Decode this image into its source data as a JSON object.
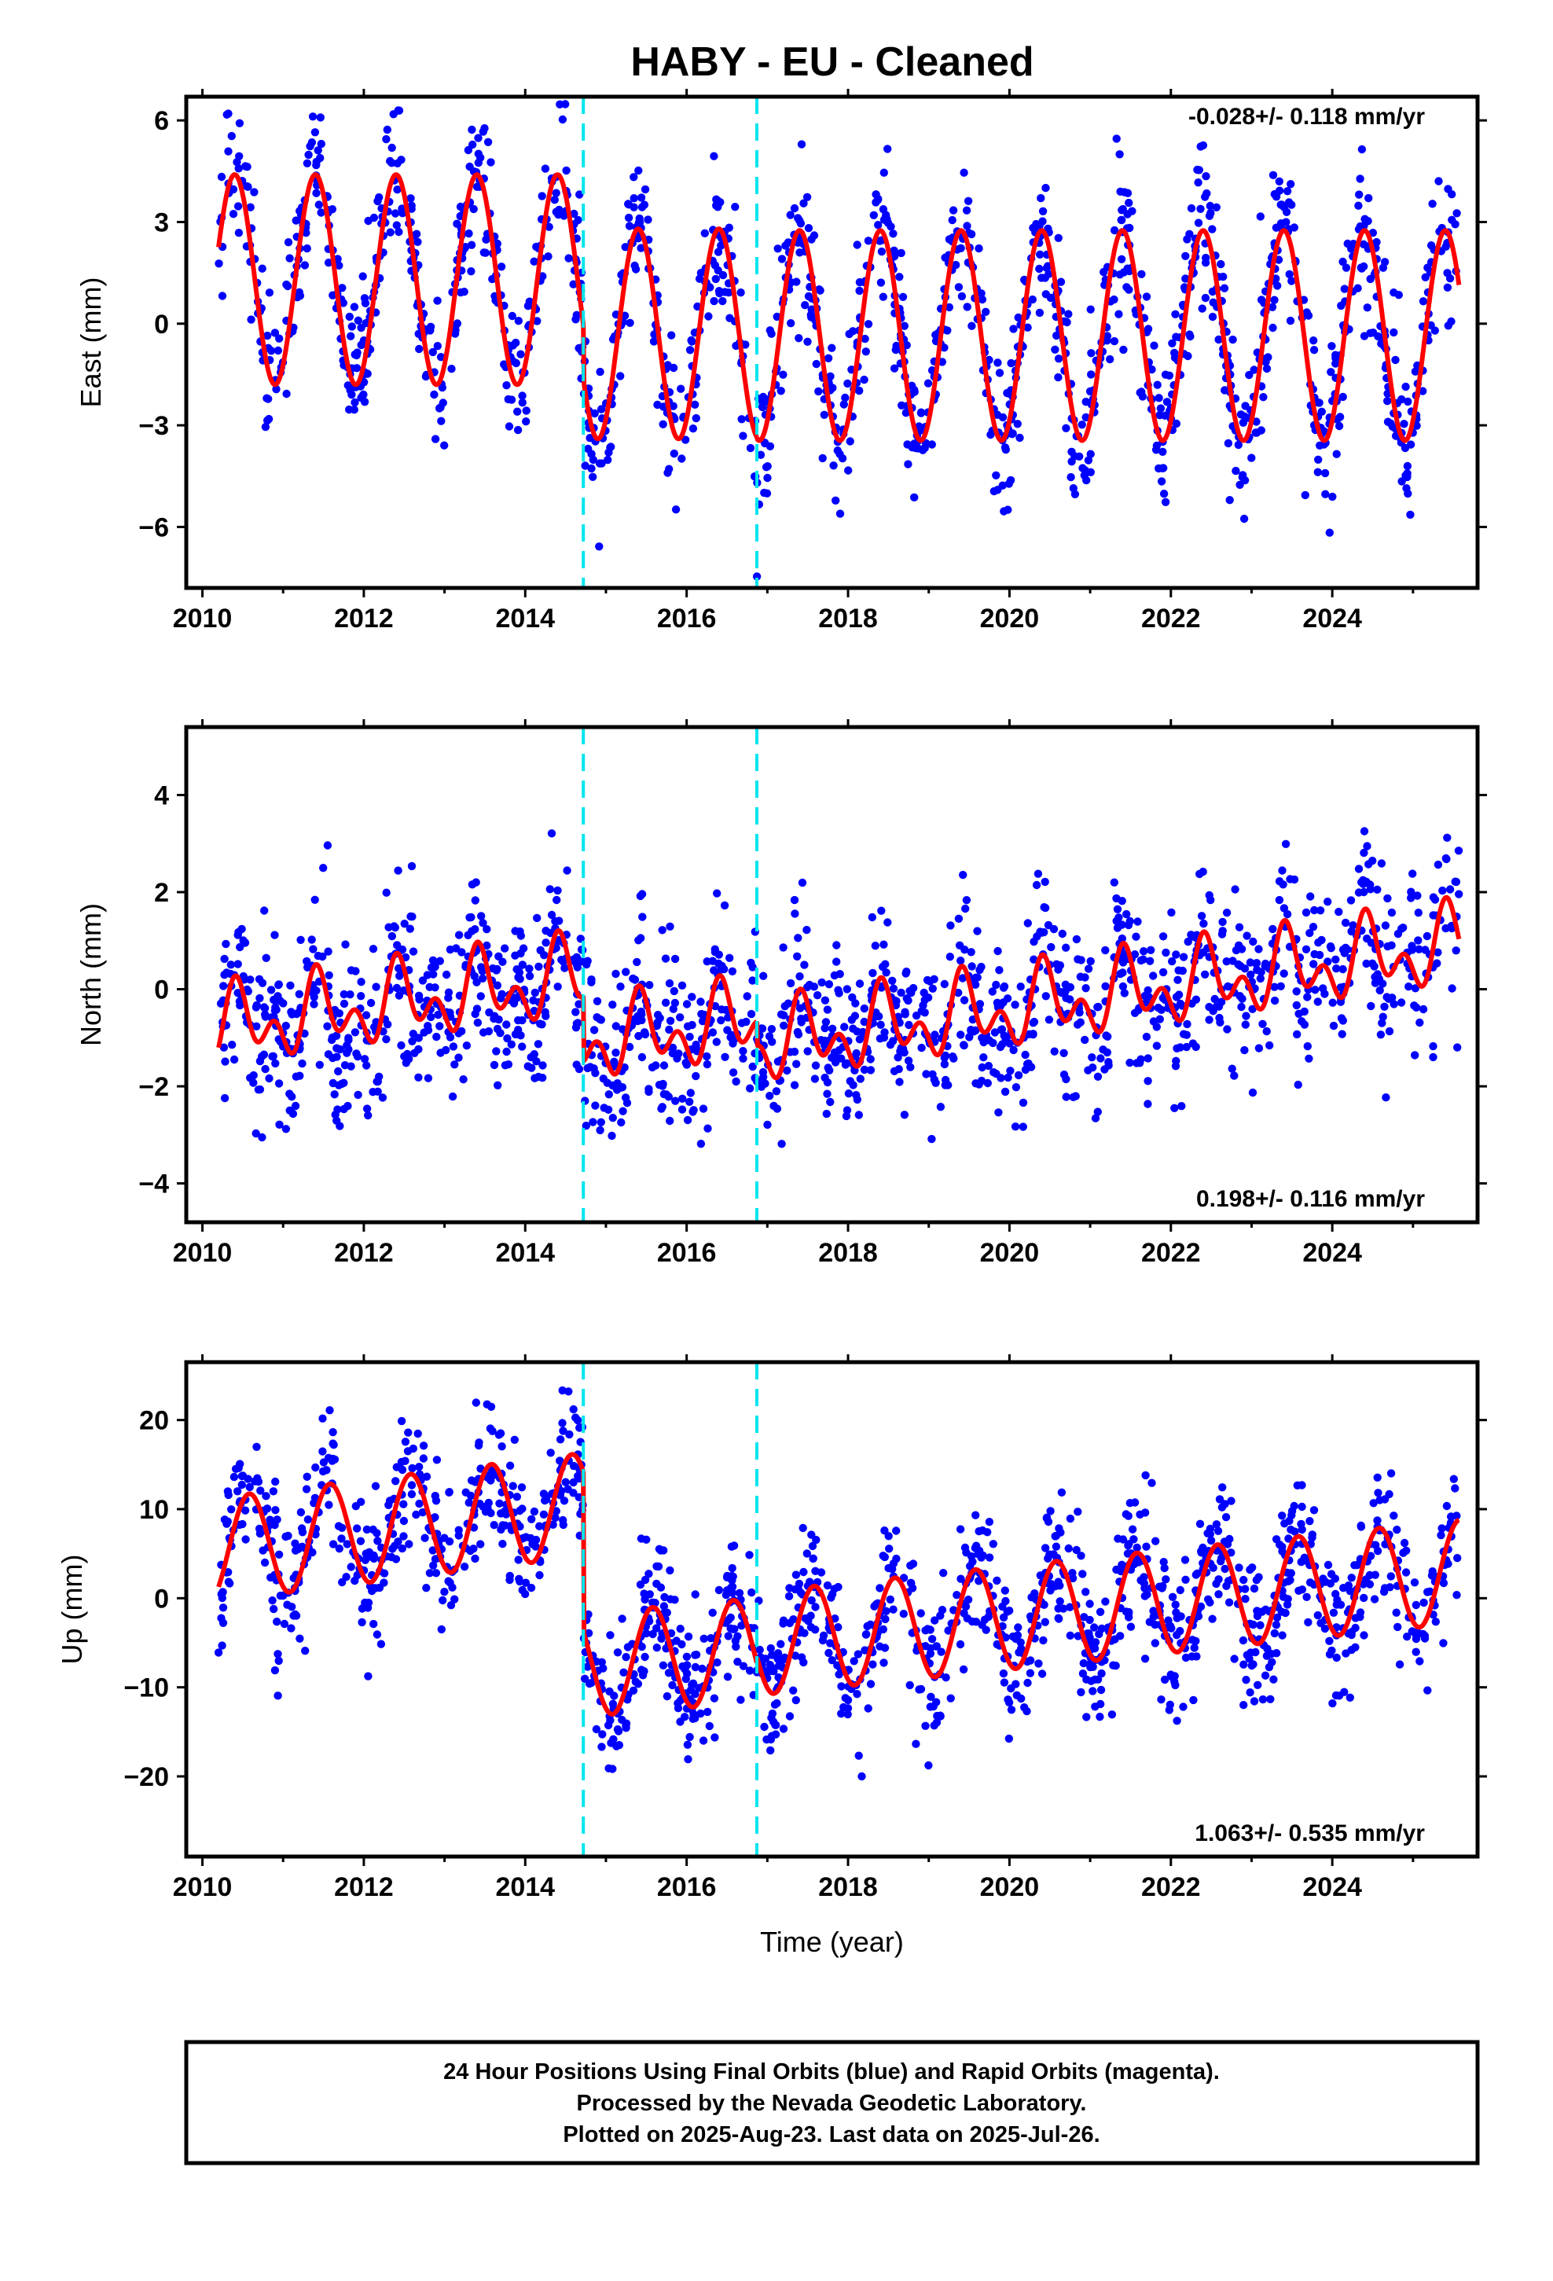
{
  "title": "HABY  - EU - Cleaned",
  "colors": {
    "final_orbits": "#0000ff",
    "model": "#ff0000",
    "offsets": "#00e5ee",
    "frame": "#000000"
  },
  "footer": {
    "line1": "24 Hour Positions Using Final Orbits (blue) and Rapid Orbits (magenta).",
    "line2": "Processed by the Nevada Geodetic Laboratory.",
    "line3": "Plotted on 2025-Aug-23. Last data on 2025-Jul-26."
  },
  "chart_data": [
    {
      "type": "scatter",
      "component": "east",
      "ylabel": "East (mm)",
      "xlabel": "",
      "xlim": [
        2009.8,
        2025.8
      ],
      "ylim": [
        -7.8,
        6.7
      ],
      "x_ticks": [
        2010,
        2012,
        2014,
        2016,
        2018,
        2020,
        2022,
        2024
      ],
      "x_tick_labels": [
        "2010",
        "2012",
        "2014",
        "2016",
        "2018",
        "2020",
        "2022",
        "2024"
      ],
      "y_ticks": [
        -6,
        -3,
        0,
        3,
        6
      ],
      "y_tick_labels": [
        "−6",
        "−3",
        "0",
        "3",
        "6"
      ],
      "rate": "-0.028+/- 0.118 mm/yr",
      "rate_position": "top-right",
      "offset_epochs": [
        2014.72,
        2016.87
      ],
      "data_span": [
        2010.2,
        2025.57
      ],
      "model": {
        "segments": [
          {
            "start": 2010.2,
            "end": 2014.72,
            "mean": 1.3,
            "amplitude": 3.1,
            "peak_phase": 0.4
          },
          {
            "start": 2014.72,
            "end": 2016.87,
            "mean": -0.3,
            "amplitude": 3.1,
            "peak_phase": 0.4
          },
          {
            "start": 2016.87,
            "end": 2025.57,
            "mean": -0.35,
            "amplitude": 3.1,
            "peak_phase": 0.4
          }
        ]
      },
      "scatter_sigma": 1.15
    },
    {
      "type": "scatter",
      "component": "north",
      "ylabel": "North (mm)",
      "xlabel": "",
      "xlim": [
        2009.8,
        2025.8
      ],
      "ylim": [
        -4.8,
        5.4
      ],
      "x_ticks": [
        2010,
        2012,
        2014,
        2016,
        2018,
        2020,
        2022,
        2024
      ],
      "x_tick_labels": [
        "2010",
        "2012",
        "2014",
        "2016",
        "2018",
        "2020",
        "2022",
        "2024"
      ],
      "y_ticks": [
        -4,
        -2,
        0,
        2,
        4
      ],
      "y_tick_labels": [
        "−4",
        "−2",
        "0",
        "2",
        "4"
      ],
      "rate": "0.198+/- 0.116 mm/yr",
      "rate_position": "bottom-right",
      "offset_epochs": [
        2014.72,
        2016.87
      ],
      "data_span": [
        2010.2,
        2025.57
      ],
      "model": {
        "segments": [
          {
            "start": 2010.2,
            "end": 2014.72,
            "mean_start": -0.8,
            "mean_end": 0.25,
            "annual": 0.55,
            "semiannual": 0.5
          },
          {
            "start": 2014.72,
            "end": 2016.87,
            "mean_start": -1.1,
            "mean_end": -0.65,
            "annual": 0.55,
            "semiannual": 0.5
          },
          {
            "start": 2016.87,
            "end": 2025.57,
            "mean_start": -1.15,
            "mean_end": 0.9,
            "annual": 0.55,
            "semiannual": 0.5
          }
        ]
      },
      "scatter_sigma": 0.85
    },
    {
      "type": "scatter",
      "component": "up",
      "ylabel": "Up (mm)",
      "xlabel": "Time (year)",
      "xlim": [
        2009.8,
        2025.8
      ],
      "ylim": [
        -29,
        26.5
      ],
      "x_ticks": [
        2010,
        2012,
        2014,
        2016,
        2018,
        2020,
        2022,
        2024
      ],
      "x_tick_labels": [
        "2010",
        "2012",
        "2014",
        "2016",
        "2018",
        "2020",
        "2022",
        "2024"
      ],
      "y_ticks": [
        -20,
        -10,
        0,
        10,
        20
      ],
      "y_tick_labels": [
        "−20",
        "−10",
        "0",
        "10",
        "20"
      ],
      "rate": "1.063+/- 0.535 mm/yr",
      "rate_position": "bottom-right",
      "offset_epochs": [
        2014.72,
        2016.87
      ],
      "data_span": [
        2010.2,
        2025.57
      ],
      "model": {
        "segments": [
          {
            "start": 2010.2,
            "end": 2014.72,
            "mean_start": 5.5,
            "mean_end": 10.5,
            "amplitude": 5.8,
            "peak_phase": 0.58
          },
          {
            "start": 2014.72,
            "end": 2016.87,
            "mean_start": -7.5,
            "mean_end": -5.8,
            "amplitude": 5.8,
            "peak_phase": 0.58
          },
          {
            "start": 2016.87,
            "end": 2025.57,
            "mean_start": -5.1,
            "mean_end": 3.0,
            "amplitude": 5.8,
            "peak_phase": 0.58
          }
        ]
      },
      "scatter_sigma": 4.0
    }
  ]
}
